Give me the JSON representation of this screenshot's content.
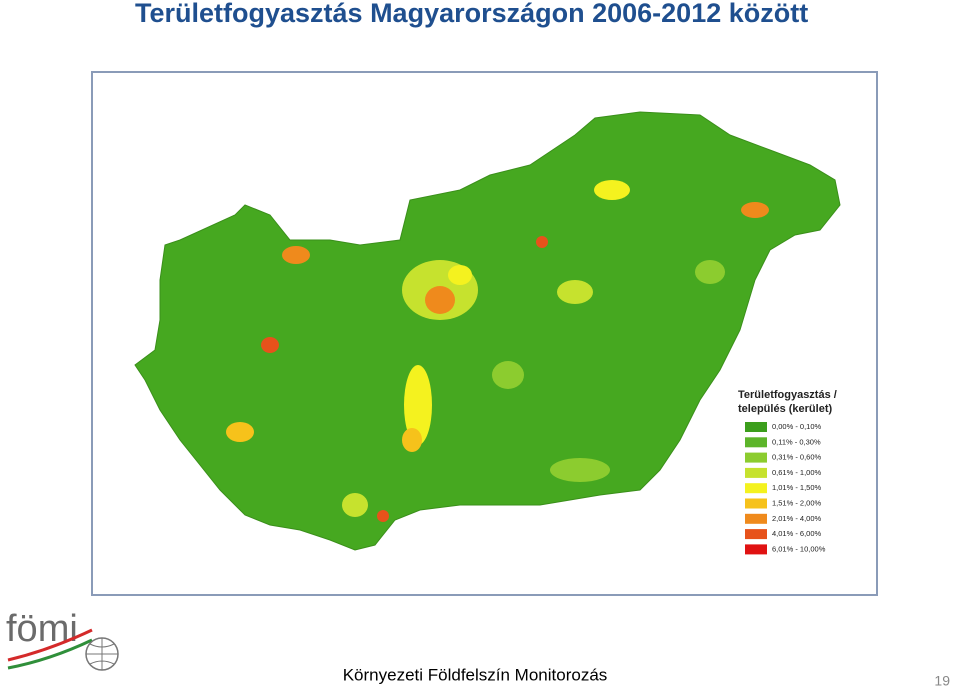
{
  "header": {
    "title": "Területfogyasztás Magyarországon 2006-2012 között"
  },
  "legend": {
    "title_lines": [
      "Területfogyasztás /",
      "település (kerület)"
    ],
    "items": [
      {
        "label": "0,00% - 0,10%",
        "color": "#3c9e1c"
      },
      {
        "label": "0,11% - 0,30%",
        "color": "#5db52a"
      },
      {
        "label": "0,31% - 0,60%",
        "color": "#8ccc2f"
      },
      {
        "label": "0,61% - 1,00%",
        "color": "#c6e22e"
      },
      {
        "label": "1,01% - 1,50%",
        "color": "#f4f21f"
      },
      {
        "label": "1,51% - 2,00%",
        "color": "#f6c21b"
      },
      {
        "label": "2,01% - 4,00%",
        "color": "#ef8a1c"
      },
      {
        "label": "4,01% - 6,00%",
        "color": "#e7521b"
      },
      {
        "label": "6,01% - 10,00%",
        "color": "#e01212"
      }
    ]
  },
  "footer": {
    "logo": "fömi",
    "text": "Környezeti Földfelszín Monitorozás",
    "page_number": "19"
  }
}
